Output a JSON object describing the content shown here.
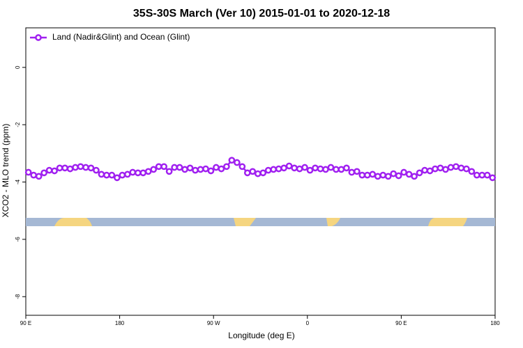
{
  "chart_data": {
    "type": "line",
    "title": "35S-30S March (Ver 10)   2015-01-01 to 2020-12-18",
    "x_label": "Longitude (deg E)",
    "y_label": "XCO2 - MLO trend (ppm)",
    "legend": "top-left",
    "x": [
      92.5,
      97.5,
      102.5,
      107.5,
      112.5,
      117.5,
      122.5,
      127.5,
      132.5,
      137.5,
      142.5,
      147.5,
      152.5,
      157.5,
      162.5,
      167.5,
      172.5,
      177.5,
      182.5,
      187.5,
      192.5,
      197.5,
      202.5,
      207.5,
      212.5,
      217.5,
      222.5,
      227.5,
      232.5,
      237.5,
      242.5,
      247.5,
      252.5,
      257.5,
      262.5,
      267.5,
      272.5,
      277.5,
      282.5,
      287.5,
      292.5,
      297.5,
      302.5,
      307.5,
      312.5,
      317.5,
      322.5,
      327.5,
      332.5,
      337.5,
      342.5,
      347.5,
      352.5,
      357.5,
      362.5,
      367.5,
      372.5,
      377.5,
      382.5,
      387.5,
      392.5,
      397.5,
      402.5,
      407.5,
      412.5,
      417.5,
      422.5,
      427.5,
      432.5,
      437.5,
      442.5,
      447.5,
      452.5,
      457.5,
      462.5,
      467.5,
      472.5,
      477.5,
      482.5,
      487.5,
      492.5,
      497.5,
      502.5,
      507.5,
      512.5,
      517.5,
      522.5,
      527.5,
      532.5,
      537.5
    ],
    "series": [
      {
        "name": "Land (Nadir&Glint) and Ocean (Glint)",
        "color": "#a020f0",
        "values": [
          -3.66,
          -3.76,
          -3.8,
          -3.68,
          -3.59,
          -3.61,
          -3.51,
          -3.51,
          -3.54,
          -3.49,
          -3.46,
          -3.49,
          -3.51,
          -3.59,
          -3.73,
          -3.76,
          -3.76,
          -3.85,
          -3.76,
          -3.73,
          -3.66,
          -3.68,
          -3.68,
          -3.63,
          -3.56,
          -3.46,
          -3.46,
          -3.63,
          -3.49,
          -3.49,
          -3.56,
          -3.51,
          -3.59,
          -3.56,
          -3.54,
          -3.61,
          -3.49,
          -3.54,
          -3.46,
          -3.24,
          -3.32,
          -3.46,
          -3.68,
          -3.63,
          -3.71,
          -3.68,
          -3.59,
          -3.56,
          -3.54,
          -3.51,
          -3.44,
          -3.51,
          -3.54,
          -3.49,
          -3.59,
          -3.51,
          -3.54,
          -3.56,
          -3.49,
          -3.56,
          -3.56,
          -3.51,
          -3.66,
          -3.63,
          -3.76,
          -3.76,
          -3.73,
          -3.8,
          -3.76,
          -3.8,
          -3.71,
          -3.78,
          -3.66,
          -3.73,
          -3.8,
          -3.68,
          -3.59,
          -3.61,
          -3.54,
          -3.51,
          -3.56,
          -3.49,
          -3.46,
          -3.51,
          -3.54,
          -3.63,
          -3.76,
          -3.76,
          -3.76,
          -3.85
        ]
      }
    ],
    "xlim": [
      90,
      540
    ],
    "xticks": [
      {
        "value": 90,
        "label": "90 E"
      },
      {
        "value": 180,
        "label": "180"
      },
      {
        "value": 270,
        "label": "90 W"
      },
      {
        "value": 360,
        "label": "0"
      },
      {
        "value": 450,
        "label": "90 E"
      },
      {
        "value": 540,
        "label": "180"
      }
    ],
    "ylim": [
      -8.65,
      1.38
    ],
    "yticks": [
      0,
      -2,
      -4,
      -6,
      -8
    ]
  }
}
